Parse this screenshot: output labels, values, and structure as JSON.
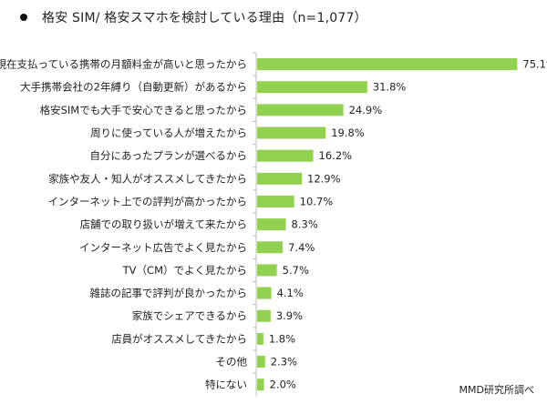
{
  "title": "格安 SIM/ 格安スマホを検討している理由（n=1,077）",
  "source": "MMD研究所調べ",
  "colors": {
    "bar": "#92d050",
    "axis": "#bfbfbf",
    "text": "#222222"
  },
  "chart_data": {
    "type": "bar",
    "orientation": "horizontal",
    "title": "格安 SIM/ 格安スマホを検討している理由（n=1,077）",
    "categories": [
      "現在支払っている携帯の月額料金が高いと思ったから",
      "大手携帯会社の2年縛り（自動更新）があるから",
      "格安SIMでも大手で安心できると思ったから",
      "周りに使っている人が増えたから",
      "自分にあったプランが選べるから",
      "家族や友人・知人がオススメしてきたから",
      "インターネット上での評判が高かったから",
      "店舗での取り扱いが増えて来たから",
      "インターネット広告でよく見たから",
      "TV（CM）でよく見たから",
      "雑誌の記事で評判が良かったから",
      "家族でシェアできるから",
      "店員がオススメしてきたから",
      "その他",
      "特にない"
    ],
    "values": [
      75.1,
      31.8,
      24.9,
      19.8,
      16.2,
      12.9,
      10.7,
      8.3,
      7.4,
      5.7,
      4.1,
      3.9,
      1.8,
      2.3,
      2.0
    ],
    "value_labels": [
      "75.1%",
      "31.8%",
      "24.9%",
      "19.8%",
      "16.2%",
      "12.9%",
      "10.7%",
      "8.3%",
      "7.4%",
      "5.7%",
      "4.1%",
      "3.9%",
      "1.8%",
      "2.3%",
      "2.0%"
    ],
    "unit": "%",
    "xlim": [
      0,
      100
    ],
    "grid": false,
    "legend": "none"
  }
}
